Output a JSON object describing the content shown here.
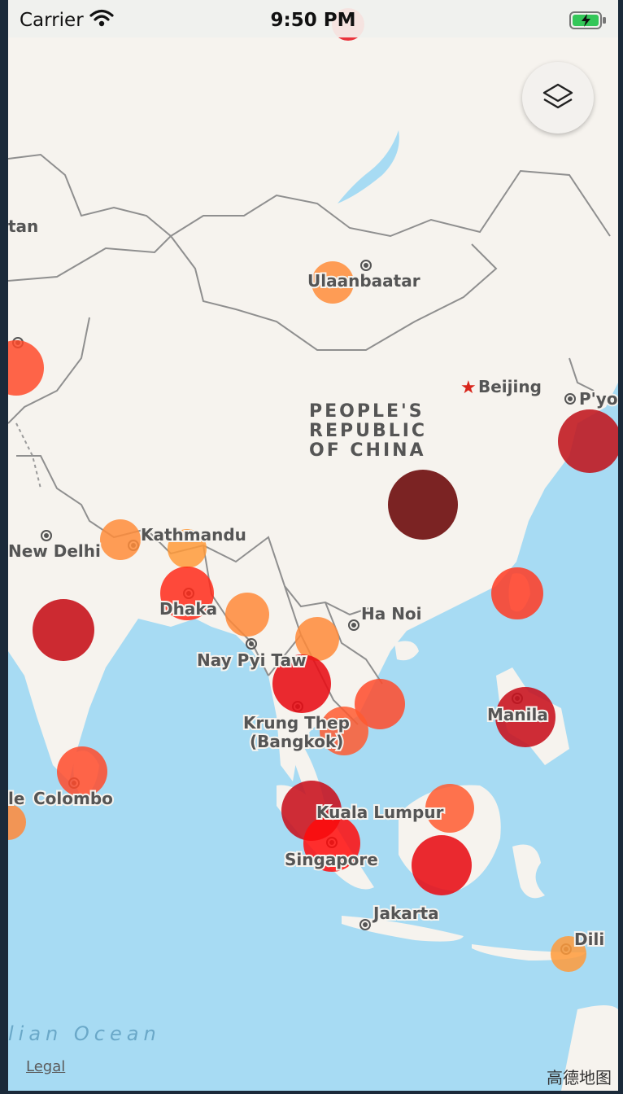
{
  "status_bar": {
    "carrier": "Carrier",
    "time": "9:50 PM"
  },
  "map": {
    "labels": {
      "stan": "tan",
      "ulaanbaatar": "Ulaanbaatar",
      "beijing": "Beijing",
      "pyongyang": "P'yo",
      "china_line1": "PEOPLE'S",
      "china_line2": "REPUBLIC",
      "china_line3": "OF CHINA",
      "new_delhi": "New Delhi",
      "kathmandu": "Kathmandu",
      "dhaka": "Dhaka",
      "ha_noi": "Ha Noi",
      "nay_pyi_taw": "Nay Pyi Taw",
      "bangkok_line1": "Krung Thep",
      "bangkok_line2": "(Bangkok)",
      "manila": "Manila",
      "colombo": "Colombo",
      "male": "le",
      "kuala_lumpur": "Kuala Lumpur",
      "singapore": "Singapore",
      "jakarta": "Jakarta",
      "dili": "Dili",
      "indian_ocean": "lian Ocean"
    },
    "markers": [
      {
        "name": "Ulaanbaatar",
        "color": "#ff8c3a",
        "intensity": 0.2
      },
      {
        "name": "Western edge",
        "color": "#ff4a2a",
        "intensity": 0.55
      },
      {
        "name": "Korea",
        "color": "#c0141c",
        "intensity": 0.8
      },
      {
        "name": "Central China",
        "color": "#6e0c0c",
        "intensity": 1.0
      },
      {
        "name": "Kathmandu",
        "color": "#ff8c3a",
        "intensity": 0.2
      },
      {
        "name": "Bhutan",
        "color": "#ff9a3a",
        "intensity": 0.2
      },
      {
        "name": "Dhaka",
        "color": "#ff2a1a",
        "intensity": 0.6
      },
      {
        "name": "India",
        "color": "#c8141c",
        "intensity": 0.8
      },
      {
        "name": "Myanmar",
        "color": "#ff8838",
        "intensity": 0.25
      },
      {
        "name": "Laos",
        "color": "#ff8a38",
        "intensity": 0.25
      },
      {
        "name": "Thailand",
        "color": "#e80c14",
        "intensity": 0.7
      },
      {
        "name": "Vietnam",
        "color": "#ff4a2a",
        "intensity": 0.55
      },
      {
        "name": "Cambodia",
        "color": "#ff5a30",
        "intensity": 0.5
      },
      {
        "name": "Taiwan",
        "color": "#ff3a22",
        "intensity": 0.55
      },
      {
        "name": "Manila",
        "color": "#c8101c",
        "intensity": 0.8
      },
      {
        "name": "Colombo",
        "color": "#ff4a2a",
        "intensity": 0.55
      },
      {
        "name": "Maldives",
        "color": "#ff8838",
        "intensity": 0.25
      },
      {
        "name": "Kuala Lumpur",
        "color": "#c8101c",
        "intensity": 0.8
      },
      {
        "name": "Singapore",
        "color": "#ff0a0a",
        "intensity": 0.7
      },
      {
        "name": "Brunei",
        "color": "#ff5a30",
        "intensity": 0.5
      },
      {
        "name": "Borneo",
        "color": "#e80c14",
        "intensity": 0.7
      },
      {
        "name": "Dili",
        "color": "#ff9a3a",
        "intensity": 0.2
      },
      {
        "name": "Top edge",
        "color": "#e8101c",
        "intensity": 0.7
      }
    ]
  },
  "controls": {
    "layers_icon": "layers-icon"
  },
  "footer": {
    "legal": "Legal",
    "attribution": "高德地图"
  }
}
